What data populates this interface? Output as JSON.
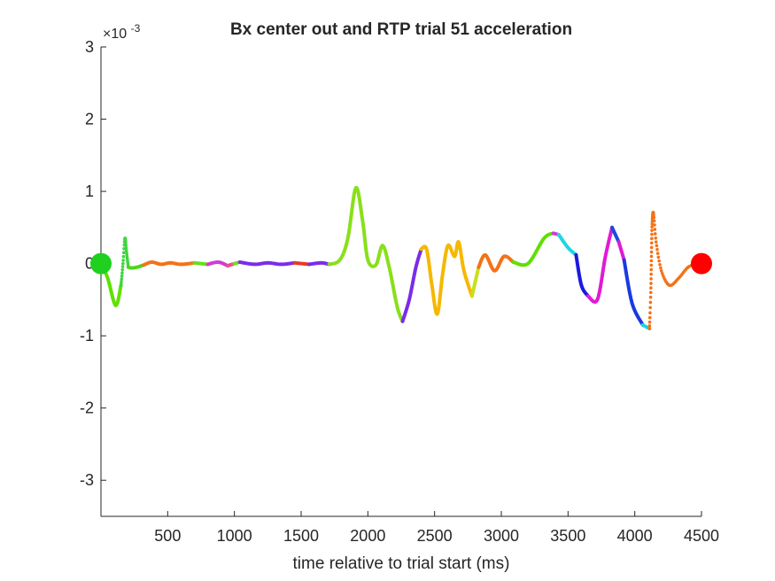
{
  "chart_data": {
    "type": "line",
    "title": "Bx  center out and RTP trial 51 acceleration",
    "xlabel": "time relative to trial start (ms)",
    "ylabel": "",
    "exponent_base": "×10",
    "exponent_power": "-3",
    "xlim": [
      0,
      4500
    ],
    "ylim": [
      -3.5,
      3
    ],
    "xticks": [
      500,
      1000,
      1500,
      2000,
      2500,
      3000,
      3500,
      4000,
      4500
    ],
    "yticks": [
      -3,
      -2,
      -1,
      0,
      1,
      2,
      3
    ],
    "grid": false,
    "legend": "none",
    "start_marker": {
      "x": 0,
      "y": 0,
      "color": "#1fd01f"
    },
    "end_marker": {
      "x": 4500,
      "y": 0,
      "color": "#ff0000"
    },
    "segments": [
      {
        "color": "#5fe000",
        "dotted": false,
        "points": [
          [
            0,
            0
          ],
          [
            50,
            -0.2
          ],
          [
            110,
            -0.58
          ],
          [
            150,
            -0.3
          ]
        ]
      },
      {
        "color": "#3ed63e",
        "dotted": true,
        "points": [
          [
            150,
            -0.3
          ],
          [
            165,
            0
          ],
          [
            180,
            0.35
          ],
          [
            192,
            0.15
          ],
          [
            205,
            -0.05
          ]
        ]
      },
      {
        "color": "#4cd616",
        "dotted": false,
        "points": [
          [
            205,
            -0.05
          ],
          [
            230,
            -0.06
          ],
          [
            270,
            -0.05
          ],
          [
            320,
            -0.02
          ]
        ]
      },
      {
        "color": "#f47216",
        "dotted": false,
        "points": [
          [
            320,
            -0.02
          ],
          [
            380,
            0.02
          ],
          [
            450,
            -0.01
          ],
          [
            520,
            0.01
          ],
          [
            600,
            -0.01
          ],
          [
            700,
            0.01
          ]
        ]
      },
      {
        "color": "#66e01a",
        "dotted": false,
        "points": [
          [
            700,
            0.01
          ],
          [
            800,
            -0.01
          ]
        ]
      },
      {
        "color": "#d23cd2",
        "dotted": false,
        "points": [
          [
            800,
            -0.01
          ],
          [
            880,
            0.02
          ],
          [
            950,
            -0.03
          ]
        ]
      },
      {
        "color": "#e84f86",
        "dotted": false,
        "points": [
          [
            950,
            -0.03
          ],
          [
            1000,
            0
          ]
        ]
      },
      {
        "color": "#6fe01a",
        "dotted": false,
        "points": [
          [
            1000,
            0
          ],
          [
            1040,
            0.02
          ]
        ]
      },
      {
        "color": "#7b2ce8",
        "dotted": false,
        "points": [
          [
            1040,
            0.02
          ],
          [
            1150,
            -0.01
          ],
          [
            1250,
            0.01
          ],
          [
            1350,
            -0.01
          ],
          [
            1450,
            0.01
          ]
        ]
      },
      {
        "color": "#e83a28",
        "dotted": false,
        "points": [
          [
            1450,
            0.01
          ],
          [
            1560,
            -0.01
          ]
        ]
      },
      {
        "color": "#7b2ce8",
        "dotted": false,
        "points": [
          [
            1560,
            -0.01
          ],
          [
            1650,
            0.01
          ],
          [
            1710,
            -0.01
          ]
        ]
      },
      {
        "color": "#88e01a",
        "dotted": false,
        "points": [
          [
            1710,
            -0.01
          ],
          [
            1790,
            0.05
          ],
          [
            1850,
            0.35
          ],
          [
            1910,
            1.05
          ],
          [
            1960,
            0.6
          ],
          [
            2000,
            0.05
          ],
          [
            2060,
            -0.02
          ],
          [
            2110,
            0.25
          ],
          [
            2160,
            -0.05
          ],
          [
            2220,
            -0.6
          ],
          [
            2260,
            -0.8
          ]
        ]
      },
      {
        "color": "#7b2ce8",
        "dotted": false,
        "points": [
          [
            2260,
            -0.8
          ],
          [
            2310,
            -0.5
          ],
          [
            2360,
            -0.05
          ],
          [
            2400,
            0.2
          ]
        ]
      },
      {
        "color": "#f5b800",
        "dotted": false,
        "points": [
          [
            2400,
            0.2
          ],
          [
            2440,
            0.2
          ],
          [
            2480,
            -0.3
          ],
          [
            2520,
            -0.7
          ],
          [
            2560,
            -0.15
          ],
          [
            2600,
            0.25
          ],
          [
            2650,
            0.1
          ],
          [
            2680,
            0.3
          ],
          [
            2720,
            -0.1
          ],
          [
            2780,
            -0.45
          ]
        ]
      },
      {
        "color": "#c8e01a",
        "dotted": false,
        "points": [
          [
            2780,
            -0.45
          ],
          [
            2830,
            -0.05
          ]
        ]
      },
      {
        "color": "#f47216",
        "dotted": false,
        "points": [
          [
            2830,
            -0.05
          ],
          [
            2880,
            0.12
          ],
          [
            2950,
            -0.1
          ],
          [
            3020,
            0.1
          ],
          [
            3090,
            0.02
          ]
        ]
      },
      {
        "color": "#5fe000",
        "dotted": false,
        "points": [
          [
            3090,
            0.02
          ],
          [
            3200,
            0
          ],
          [
            3320,
            0.35
          ],
          [
            3390,
            0.42
          ]
        ]
      },
      {
        "color": "#d23cd2",
        "dotted": false,
        "points": [
          [
            3390,
            0.42
          ],
          [
            3430,
            0.4
          ]
        ]
      },
      {
        "color": "#1fd6e0",
        "dotted": false,
        "points": [
          [
            3430,
            0.4
          ],
          [
            3500,
            0.22
          ],
          [
            3560,
            0.12
          ]
        ]
      },
      {
        "color": "#1a1ae0",
        "dotted": false,
        "points": [
          [
            3560,
            0.12
          ],
          [
            3600,
            -0.3
          ],
          [
            3650,
            -0.45
          ]
        ]
      },
      {
        "color": "#e01ad6",
        "dotted": false,
        "points": [
          [
            3650,
            -0.45
          ],
          [
            3720,
            -0.5
          ],
          [
            3780,
            0.1
          ],
          [
            3830,
            0.5
          ]
        ]
      },
      {
        "color": "#1a4ae0",
        "dotted": false,
        "points": [
          [
            3830,
            0.5
          ],
          [
            3880,
            0.3
          ]
        ]
      },
      {
        "color": "#e01ad6",
        "dotted": false,
        "points": [
          [
            3880,
            0.3
          ],
          [
            3920,
            0.05
          ]
        ]
      },
      {
        "color": "#1a3ae0",
        "dotted": false,
        "points": [
          [
            3920,
            0.05
          ],
          [
            3980,
            -0.55
          ],
          [
            4060,
            -0.85
          ]
        ]
      },
      {
        "color": "#1ad6e0",
        "dotted": false,
        "points": [
          [
            4060,
            -0.85
          ],
          [
            4110,
            -0.9
          ]
        ]
      },
      {
        "color": "#f47216",
        "dotted": true,
        "points": [
          [
            4110,
            -0.9
          ],
          [
            4120,
            -0.4
          ],
          [
            4125,
            0.1
          ],
          [
            4130,
            0.55
          ],
          [
            4140,
            0.7
          ],
          [
            4160,
            0.3
          ],
          [
            4200,
            -0.1
          ],
          [
            4260,
            -0.3
          ],
          [
            4330,
            -0.2
          ],
          [
            4400,
            -0.05
          ],
          [
            4470,
            0
          ]
        ]
      }
    ]
  }
}
